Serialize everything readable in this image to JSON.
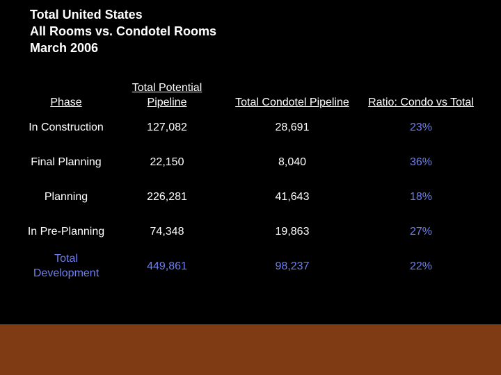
{
  "title": {
    "line1": "Total United States",
    "line2": "All Rooms vs. Condotel Rooms",
    "line3": "March 2006"
  },
  "table": {
    "headers": [
      "Phase",
      "Total Potential Pipeline",
      "Total Condotel Pipeline",
      "Ratio: Condo vs Total"
    ],
    "rows": [
      {
        "phase": "In Construction",
        "potential": "127,082",
        "condotel": "28,691",
        "ratio": "23%"
      },
      {
        "phase": "Final Planning",
        "potential": "22,150",
        "condotel": "8,040",
        "ratio": "36%"
      },
      {
        "phase": "Planning",
        "potential": "226,281",
        "condotel": "41,643",
        "ratio": "18%"
      },
      {
        "phase": "In Pre-Planning",
        "potential": "74,348",
        "condotel": "19,863",
        "ratio": "27%"
      },
      {
        "phase": "Total Development",
        "potential": "449,861",
        "condotel": "98,237",
        "ratio": "22%"
      }
    ]
  },
  "colors": {
    "background": "#000000",
    "text": "#ffffff",
    "accent_blue": "#6d7ff2",
    "footer": "#7e3b14"
  }
}
